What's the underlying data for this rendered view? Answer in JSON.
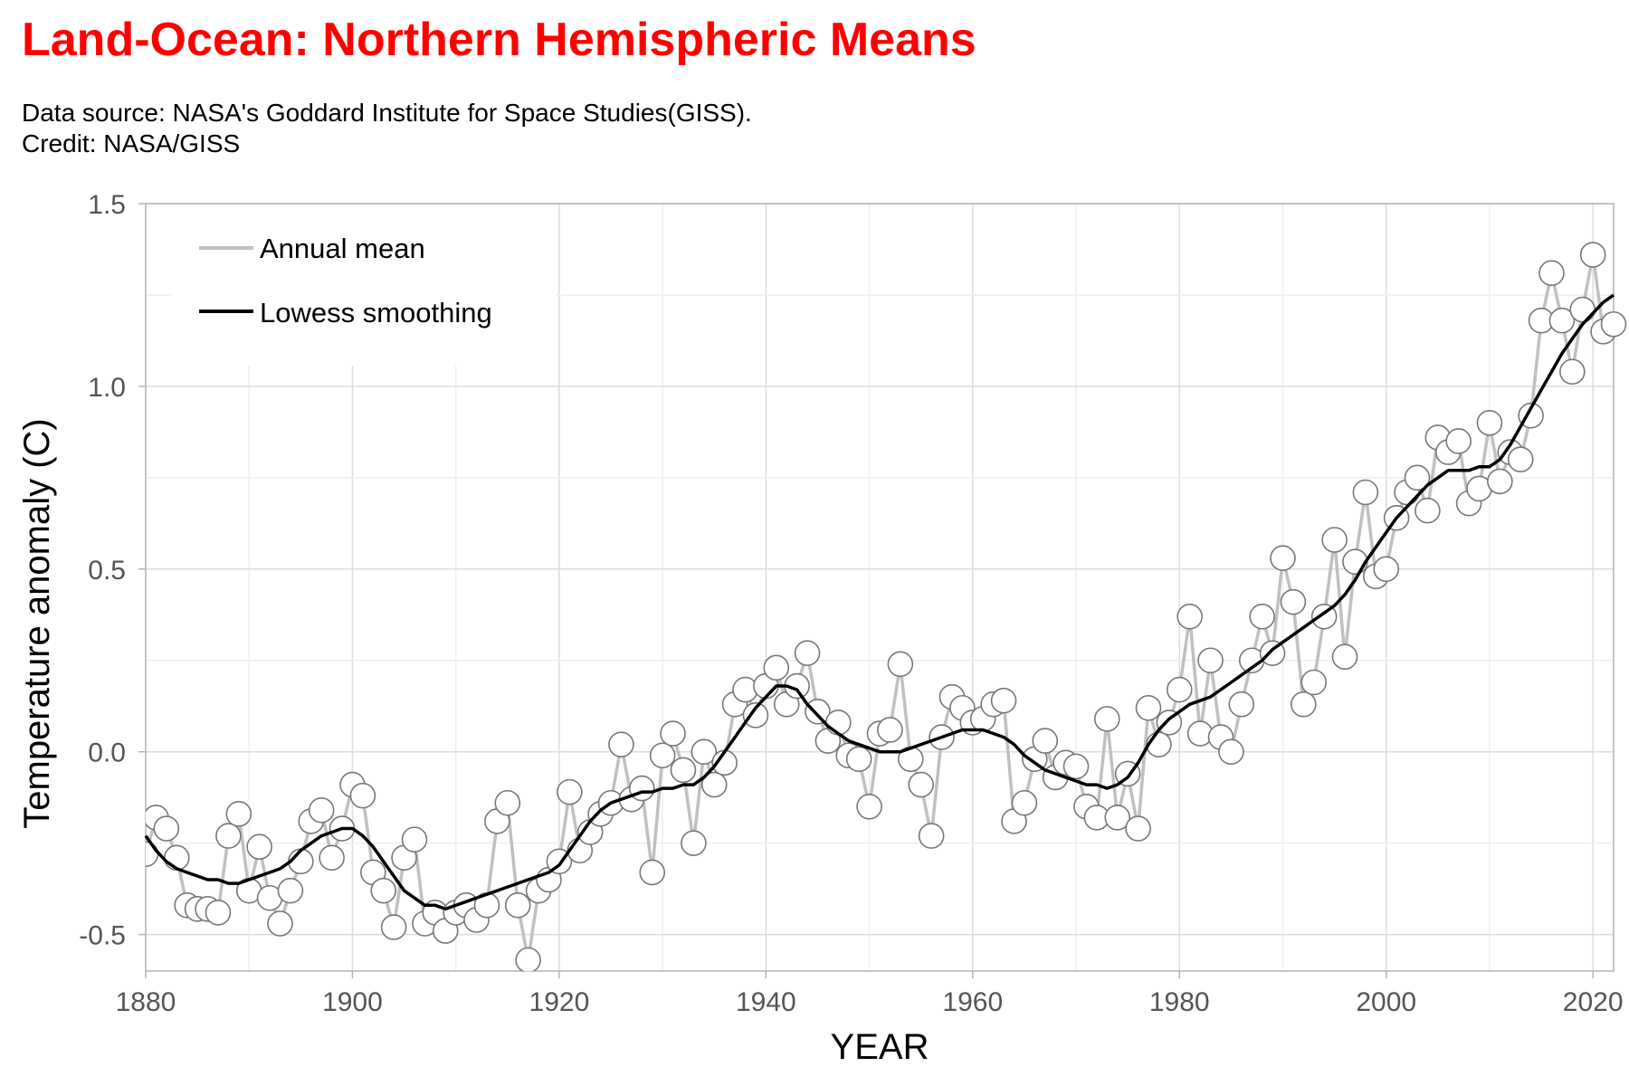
{
  "header": {
    "title": "Land-Ocean: Northern Hemispheric Means",
    "subtitle_line1": "Data source: NASA's Goddard Institute for Space Studies(GISS).",
    "subtitle_line2": "Credit: NASA/GISS"
  },
  "colors": {
    "title": "#ff0000",
    "annual": "#c0c0c0",
    "smooth": "#000000",
    "grid": "#e3e3e3",
    "axis": "#b3b3b3"
  },
  "chart_data": {
    "type": "line",
    "xlabel": "YEAR",
    "ylabel": "Temperature anomaly (C)",
    "xlim": [
      1880,
      2022
    ],
    "ylim": [
      -0.6,
      1.5
    ],
    "xticks": [
      "1880",
      "1900",
      "1920",
      "1940",
      "1960",
      "1980",
      "2000",
      "2020"
    ],
    "yticks": [
      "1.5",
      "1.0",
      "0.5",
      "0.0",
      "-0.5"
    ],
    "legend_position": "top-left",
    "grid": true,
    "series": [
      {
        "name": "Annual mean",
        "marker": "circle",
        "x_start": 1880,
        "values": [
          -0.28,
          -0.18,
          -0.21,
          -0.29,
          -0.42,
          -0.43,
          -0.43,
          -0.44,
          -0.23,
          -0.17,
          -0.38,
          -0.26,
          -0.4,
          -0.47,
          -0.38,
          -0.3,
          -0.19,
          -0.16,
          -0.29,
          -0.21,
          -0.09,
          -0.12,
          -0.33,
          -0.38,
          -0.48,
          -0.29,
          -0.24,
          -0.47,
          -0.44,
          -0.49,
          -0.44,
          -0.42,
          -0.46,
          -0.42,
          -0.19,
          -0.14,
          -0.42,
          -0.57,
          -0.38,
          -0.35,
          -0.3,
          -0.11,
          -0.27,
          -0.22,
          -0.17,
          -0.14,
          0.02,
          -0.13,
          -0.1,
          -0.33,
          -0.01,
          0.05,
          -0.05,
          -0.25,
          0.0,
          -0.09,
          -0.03,
          0.13,
          0.17,
          0.1,
          0.18,
          0.23,
          0.13,
          0.18,
          0.27,
          0.11,
          0.03,
          0.08,
          -0.01,
          -0.02,
          -0.15,
          0.05,
          0.06,
          0.24,
          -0.02,
          -0.09,
          -0.23,
          0.04,
          0.15,
          0.12,
          0.08,
          0.09,
          0.13,
          0.14,
          -0.19,
          -0.14,
          -0.02,
          0.03,
          -0.07,
          -0.03,
          -0.04,
          -0.15,
          -0.18,
          0.09,
          -0.18,
          -0.06,
          -0.21,
          0.12,
          0.02,
          0.08,
          0.17,
          0.37,
          0.05,
          0.25,
          0.04,
          0.0,
          0.13,
          0.25,
          0.37,
          0.27,
          0.53,
          0.41,
          0.13,
          0.19,
          0.37,
          0.58,
          0.26,
          0.52,
          0.71,
          0.48,
          0.5,
          0.64,
          0.71,
          0.75,
          0.66,
          0.86,
          0.82,
          0.85,
          0.68,
          0.72,
          0.9,
          0.74,
          0.82,
          0.8,
          0.92,
          1.18,
          1.31,
          1.18,
          1.04,
          1.21,
          1.36,
          1.15,
          1.17
        ]
      },
      {
        "name": "Lowess smoothing",
        "marker": "none",
        "x_start": 1880,
        "values": [
          -0.23,
          -0.27,
          -0.3,
          -0.32,
          -0.33,
          -0.34,
          -0.35,
          -0.35,
          -0.36,
          -0.36,
          -0.35,
          -0.34,
          -0.33,
          -0.32,
          -0.3,
          -0.27,
          -0.25,
          -0.23,
          -0.22,
          -0.21,
          -0.21,
          -0.23,
          -0.26,
          -0.3,
          -0.34,
          -0.38,
          -0.4,
          -0.42,
          -0.42,
          -0.43,
          -0.42,
          -0.41,
          -0.4,
          -0.39,
          -0.38,
          -0.37,
          -0.36,
          -0.35,
          -0.34,
          -0.33,
          -0.31,
          -0.27,
          -0.23,
          -0.19,
          -0.16,
          -0.14,
          -0.13,
          -0.12,
          -0.11,
          -0.11,
          -0.1,
          -0.1,
          -0.09,
          -0.09,
          -0.07,
          -0.04,
          0.0,
          0.04,
          0.08,
          0.12,
          0.15,
          0.18,
          0.18,
          0.17,
          0.13,
          0.1,
          0.07,
          0.05,
          0.03,
          0.02,
          0.01,
          0.0,
          0.0,
          0.0,
          0.01,
          0.02,
          0.03,
          0.04,
          0.05,
          0.06,
          0.06,
          0.06,
          0.05,
          0.04,
          0.02,
          -0.01,
          -0.03,
          -0.05,
          -0.06,
          -0.07,
          -0.08,
          -0.09,
          -0.09,
          -0.1,
          -0.09,
          -0.07,
          -0.03,
          0.02,
          0.06,
          0.09,
          0.11,
          0.13,
          0.14,
          0.15,
          0.17,
          0.19,
          0.21,
          0.23,
          0.25,
          0.28,
          0.3,
          0.32,
          0.34,
          0.36,
          0.38,
          0.4,
          0.43,
          0.47,
          0.52,
          0.56,
          0.6,
          0.64,
          0.67,
          0.7,
          0.73,
          0.75,
          0.77,
          0.77,
          0.77,
          0.78,
          0.78,
          0.8,
          0.84,
          0.89,
          0.94,
          0.99,
          1.04,
          1.09,
          1.13,
          1.17,
          1.2,
          1.23,
          1.25
        ]
      }
    ]
  }
}
